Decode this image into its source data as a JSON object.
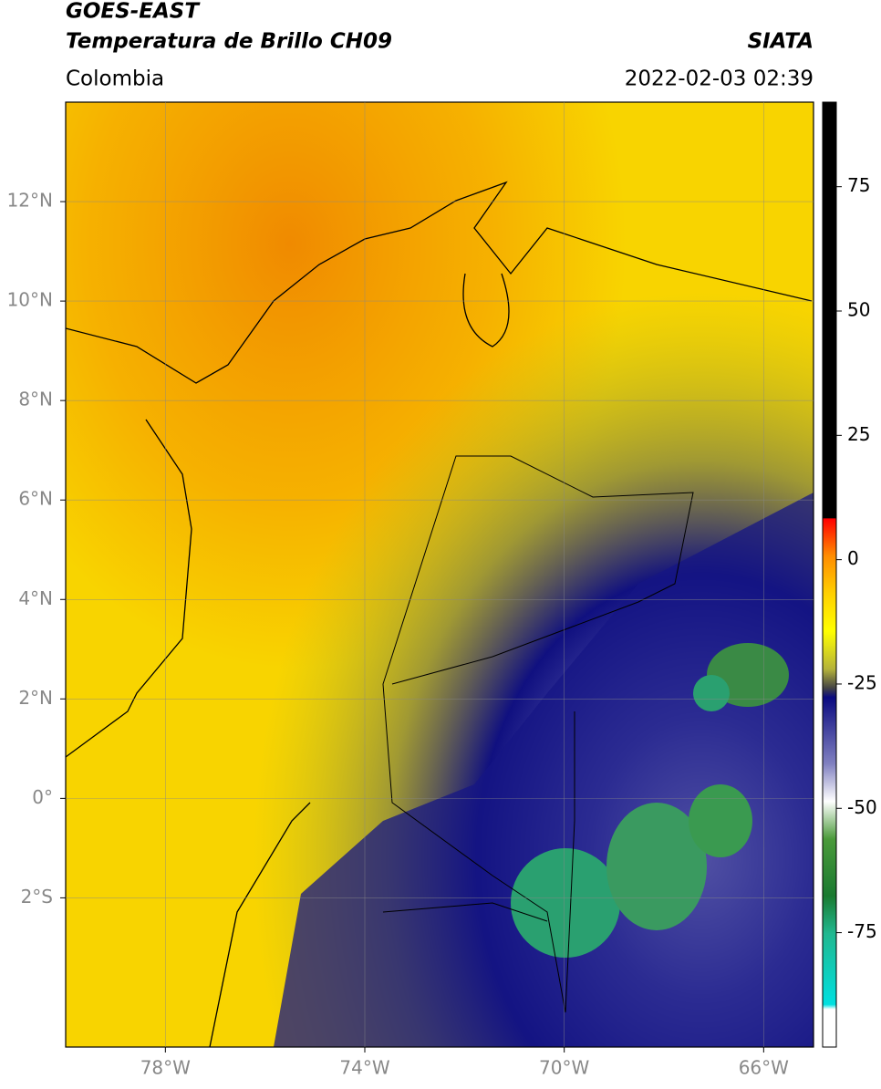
{
  "header": {
    "title_line1": "GOES-EAST",
    "title_line2": "Temperatura de Brillo CH09",
    "source": "SIATA",
    "region": "Colombia",
    "datetime": "2022-02-03 02:39"
  },
  "map": {
    "xlim": [
      -80,
      -65
    ],
    "ylim": [
      -5,
      14
    ],
    "xticks": [
      {
        "value": -78,
        "label": "78°W"
      },
      {
        "value": -74,
        "label": "74°W"
      },
      {
        "value": -70,
        "label": "70°W"
      },
      {
        "value": -66,
        "label": "66°W"
      }
    ],
    "yticks": [
      {
        "value": 12,
        "label": "12°N"
      },
      {
        "value": 10,
        "label": "10°N"
      },
      {
        "value": 8,
        "label": "8°N"
      },
      {
        "value": 6,
        "label": "6°N"
      },
      {
        "value": 4,
        "label": "4°N"
      },
      {
        "value": 2,
        "label": "2°N"
      },
      {
        "value": 0,
        "label": "0°"
      },
      {
        "value": -2,
        "label": "2°S"
      }
    ],
    "grid": true
  },
  "colorbar": {
    "lim": [
      -98,
      92
    ],
    "ticks": [
      75,
      50,
      25,
      0,
      -25,
      -50,
      -75
    ]
  }
}
